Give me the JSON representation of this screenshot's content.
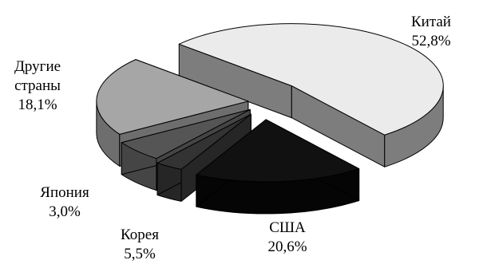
{
  "chart_data": {
    "type": "pie",
    "style": "3d-exploded",
    "slices": [
      {
        "label": "Китай",
        "value_label": "52,8%",
        "value": 52.8,
        "color": "#ebebeb",
        "side_color": "#7d7d7d"
      },
      {
        "label": "США",
        "value_label": "20,6%",
        "value": 20.6,
        "color": "#a6a6a6",
        "side_color": "#6e6e6e"
      },
      {
        "label": "Корея",
        "value_label": "5,5%",
        "value": 5.5,
        "color": "#555555",
        "side_color": "#454545"
      },
      {
        "label": "Япония",
        "value_label": "3,0%",
        "value": 3.0,
        "color": "#333333",
        "side_color": "#262626"
      },
      {
        "label": "Другие страны",
        "label_lines": [
          "Другие",
          "страны"
        ],
        "value_label": "18,1%",
        "value": 18.1,
        "color": "#111111",
        "side_color": "#050505"
      }
    ]
  }
}
